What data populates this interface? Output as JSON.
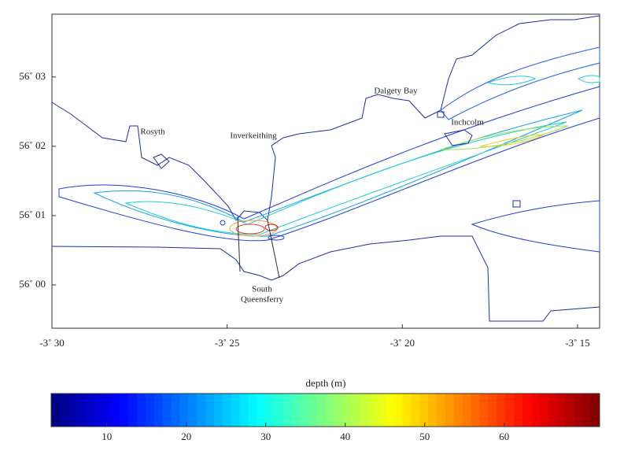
{
  "map": {
    "xlim": [
      -3.5,
      -3.2395
    ],
    "xticks": [
      {
        "value": -3.5,
        "label": "-3˚ 30"
      },
      {
        "value": -3.41667,
        "label": "-3˚ 25"
      },
      {
        "value": -3.33333,
        "label": "-3˚ 20"
      },
      {
        "value": -3.25,
        "label": "-3˚ 15"
      }
    ],
    "ylim": [
      55.9896,
      56.0651
    ],
    "yticks": [
      {
        "value": 56.0,
        "label": "56˚ 00"
      },
      {
        "value": 56.01667,
        "label": "56˚ 01"
      },
      {
        "value": 56.03333,
        "label": "56˚ 02"
      },
      {
        "value": 56.05,
        "label": "56˚ 03"
      }
    ],
    "places": [
      "Rosyth",
      "Inverkeithing",
      "Dalgety Bay",
      "Inchcolm",
      "South",
      "Queensferry"
    ]
  },
  "colorbar": {
    "label": "depth (m)",
    "clim": [
      3,
      72
    ],
    "ticks": [
      10,
      20,
      30,
      40,
      50,
      60
    ],
    "colormap": "jet"
  }
}
